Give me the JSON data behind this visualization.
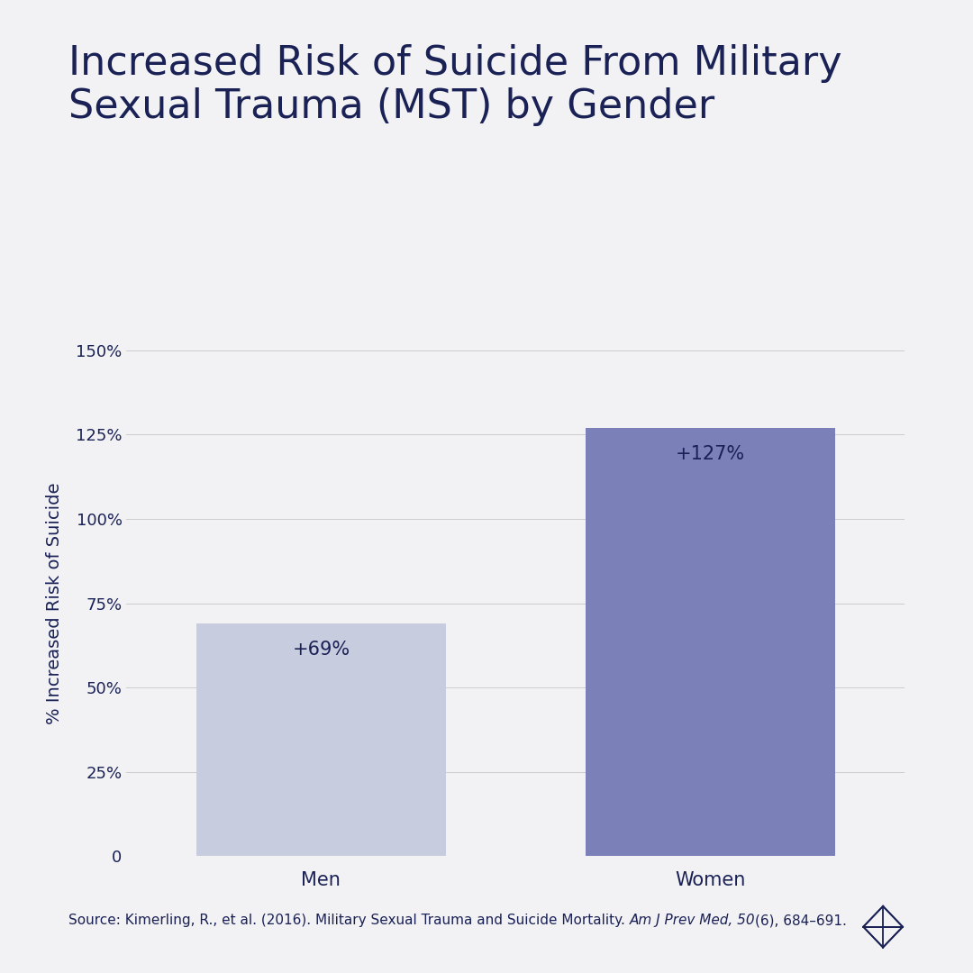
{
  "title_line1": "Increased Risk of Suicide From Military",
  "title_line2": "Sexual Trauma (MST) by Gender",
  "categories": [
    "Men",
    "Women"
  ],
  "values": [
    69,
    127
  ],
  "labels": [
    "+69%",
    "+127%"
  ],
  "bar_colors": [
    "#c8ccdf",
    "#7b80b8"
  ],
  "ylabel": "% Increased Risk of Suicide",
  "ylim": [
    0,
    150
  ],
  "yticks": [
    0,
    25,
    50,
    75,
    100,
    125,
    150
  ],
  "ytick_labels": [
    "0",
    "25%",
    "50%",
    "75%",
    "100%",
    "125%",
    "150%"
  ],
  "background_color": "#f2f2f5",
  "text_color": "#1a2155",
  "title_fontsize": 32,
  "axis_label_fontsize": 14,
  "tick_fontsize": 13,
  "bar_label_fontsize": 15,
  "source_text_plain": "Source: Kimerling, R., et al. (2016). Military Sexual Trauma and Suicide Mortality. ",
  "source_text_italic": "Am J Prev Med, 50",
  "source_text_end": "(6), 684–691.",
  "source_fontsize": 11
}
